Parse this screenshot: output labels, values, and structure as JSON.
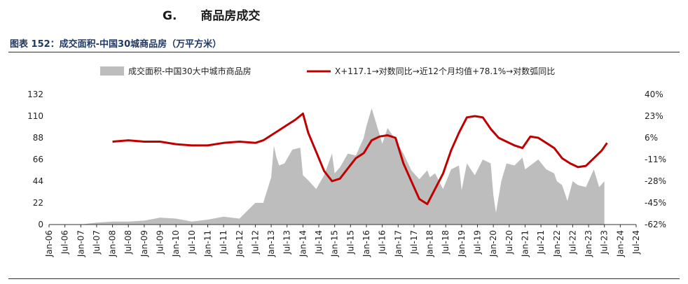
{
  "section": {
    "letter": "G.",
    "title": "商品房成交"
  },
  "caption": "图表 152：成交面积-中国30城商品房（万平方米）",
  "colors": {
    "area": "#bdbdbd",
    "line": "#c00000",
    "caption": "#1f3864"
  },
  "chart_data": {
    "type": "area",
    "title": "",
    "legend_placement": "top",
    "x_ticks": [
      "Jan-06",
      "Jul-06",
      "Jan-07",
      "Jul-07",
      "Jan-08",
      "Jul-08",
      "Jan-09",
      "Jul-09",
      "Jan-10",
      "Jul-10",
      "Jan-11",
      "Jul-11",
      "Jan-12",
      "Jul-12",
      "Jan-13",
      "Jul-13",
      "Jan-14",
      "Jul-14",
      "Jan-15",
      "Jul-15",
      "Jan-16",
      "Jul-16",
      "Jan-17",
      "Jul-17",
      "Jan-18",
      "Jul-18",
      "Jan-19",
      "Jul-19",
      "Jan-20",
      "Jul-20",
      "Jan-21",
      "Jul-21",
      "Jan-22",
      "Jul-22",
      "Jan-23",
      "Jul-23",
      "Jan-24",
      "Jul-24"
    ],
    "y_left": {
      "ticks": [
        "0",
        "22",
        "44",
        "66",
        "88",
        "110",
        "132"
      ],
      "min": 0,
      "max": 132
    },
    "y_right": {
      "ticks": [
        "-62%",
        "-45%",
        "-28%",
        "-11%",
        "6%",
        "23%",
        "40%"
      ],
      "min": -62,
      "max": 40
    },
    "grid": false,
    "series": [
      {
        "name": "成交面积-中国30大中城市商品房",
        "kind": "area",
        "axis": "left",
        "x": [
          "2006-01",
          "2006-07",
          "2007-01",
          "2007-07",
          "2008-01",
          "2008-07",
          "2009-01",
          "2009-07",
          "2010-01",
          "2010-07",
          "2011-01",
          "2011-07",
          "2012-01",
          "2012-04",
          "2012-07",
          "2012-10",
          "2013-01",
          "2013-02",
          "2013-03",
          "2013-04",
          "2013-06",
          "2013-09",
          "2013-12",
          "2014-01",
          "2014-03",
          "2014-06",
          "2014-09",
          "2014-12",
          "2015-01",
          "2015-03",
          "2015-06",
          "2015-09",
          "2015-12",
          "2016-01",
          "2016-03",
          "2016-05",
          "2016-07",
          "2016-09",
          "2016-12",
          "2017-03",
          "2017-06",
          "2017-09",
          "2017-12",
          "2018-01",
          "2018-03",
          "2018-06",
          "2018-09",
          "2018-12",
          "2019-01",
          "2019-03",
          "2019-06",
          "2019-09",
          "2019-12",
          "2020-01",
          "2020-02",
          "2020-04",
          "2020-06",
          "2020-09",
          "2020-12",
          "2021-01",
          "2021-03",
          "2021-06",
          "2021-09",
          "2021-12",
          "2022-01",
          "2022-03",
          "2022-05",
          "2022-07",
          "2022-09",
          "2022-12",
          "2023-01",
          "2023-03",
          "2023-05",
          "2023-07"
        ],
        "values": [
          0,
          0,
          0,
          2,
          3,
          3,
          4,
          7,
          6,
          3,
          5,
          8,
          6,
          14,
          22,
          22,
          48,
          80,
          68,
          60,
          62,
          76,
          78,
          50,
          45,
          36,
          50,
          72,
          52,
          58,
          72,
          70,
          88,
          100,
          118,
          100,
          82,
          98,
          86,
          72,
          55,
          46,
          55,
          48,
          52,
          36,
          56,
          60,
          35,
          62,
          50,
          66,
          62,
          30,
          12,
          44,
          62,
          60,
          68,
          56,
          60,
          66,
          56,
          52,
          44,
          40,
          24,
          44,
          40,
          38,
          44,
          56,
          38,
          44
        ]
      },
      {
        "name": "X+117.1→对数同比→近12个月均值+78.1%→对数弧同比",
        "kind": "line",
        "axis": "right",
        "x": [
          "2008-01",
          "2008-07",
          "2009-01",
          "2009-07",
          "2010-01",
          "2010-07",
          "2011-01",
          "2011-07",
          "2012-01",
          "2012-07",
          "2012-10",
          "2013-01",
          "2013-04",
          "2013-07",
          "2013-10",
          "2014-01",
          "2014-03",
          "2014-06",
          "2014-09",
          "2014-12",
          "2015-03",
          "2015-06",
          "2015-09",
          "2015-12",
          "2016-03",
          "2016-06",
          "2016-09",
          "2016-12",
          "2017-03",
          "2017-06",
          "2017-09",
          "2017-12",
          "2018-03",
          "2018-06",
          "2018-09",
          "2018-12",
          "2019-03",
          "2019-06",
          "2019-09",
          "2019-12",
          "2020-03",
          "2020-06",
          "2020-09",
          "2020-12",
          "2021-03",
          "2021-06",
          "2021-09",
          "2021-12",
          "2022-03",
          "2022-06",
          "2022-09",
          "2022-12",
          "2023-03",
          "2023-06",
          "2023-08"
        ],
        "values": [
          3,
          4,
          3,
          3,
          1,
          0,
          0,
          2,
          3,
          2,
          4,
          8,
          12,
          16,
          20,
          25,
          10,
          -5,
          -20,
          -28,
          -26,
          -18,
          -10,
          -6,
          4,
          7,
          8,
          6,
          -14,
          -28,
          -42,
          -46,
          -34,
          -22,
          -4,
          10,
          22,
          23,
          22,
          13,
          6,
          3,
          0,
          -2,
          7,
          6,
          2,
          -2,
          -10,
          -14,
          -17,
          -16,
          -10,
          -4,
          2
        ]
      }
    ]
  }
}
